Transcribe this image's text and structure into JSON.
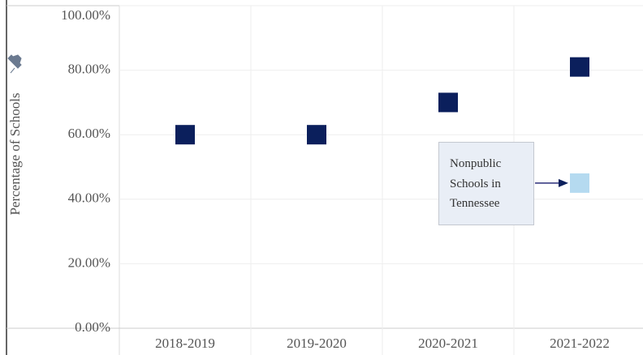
{
  "chart_data": {
    "type": "scatter",
    "y_axis_label": "Percentage of Schools",
    "categories": [
      "2018-2019",
      "2019-2020",
      "2020-2021",
      "2021-2022"
    ],
    "series": [
      {
        "color": "#0b1f5c",
        "values": [
          60,
          60,
          70,
          81
        ]
      },
      {
        "name": "Nonpublic Schools in Tennessee",
        "color": "#b5daf0",
        "values": [
          null,
          null,
          null,
          45
        ]
      }
    ],
    "ylim": [
      0,
      100
    ],
    "yticks": [
      {
        "value": 0,
        "label": "0.00%"
      },
      {
        "value": 20,
        "label": "20.00%"
      },
      {
        "value": 40,
        "label": "40.00%"
      },
      {
        "value": 60,
        "label": "60.00%"
      },
      {
        "value": 80,
        "label": "80.00%"
      },
      {
        "value": 100,
        "label": "100.00%"
      }
    ],
    "grid": true
  }
}
